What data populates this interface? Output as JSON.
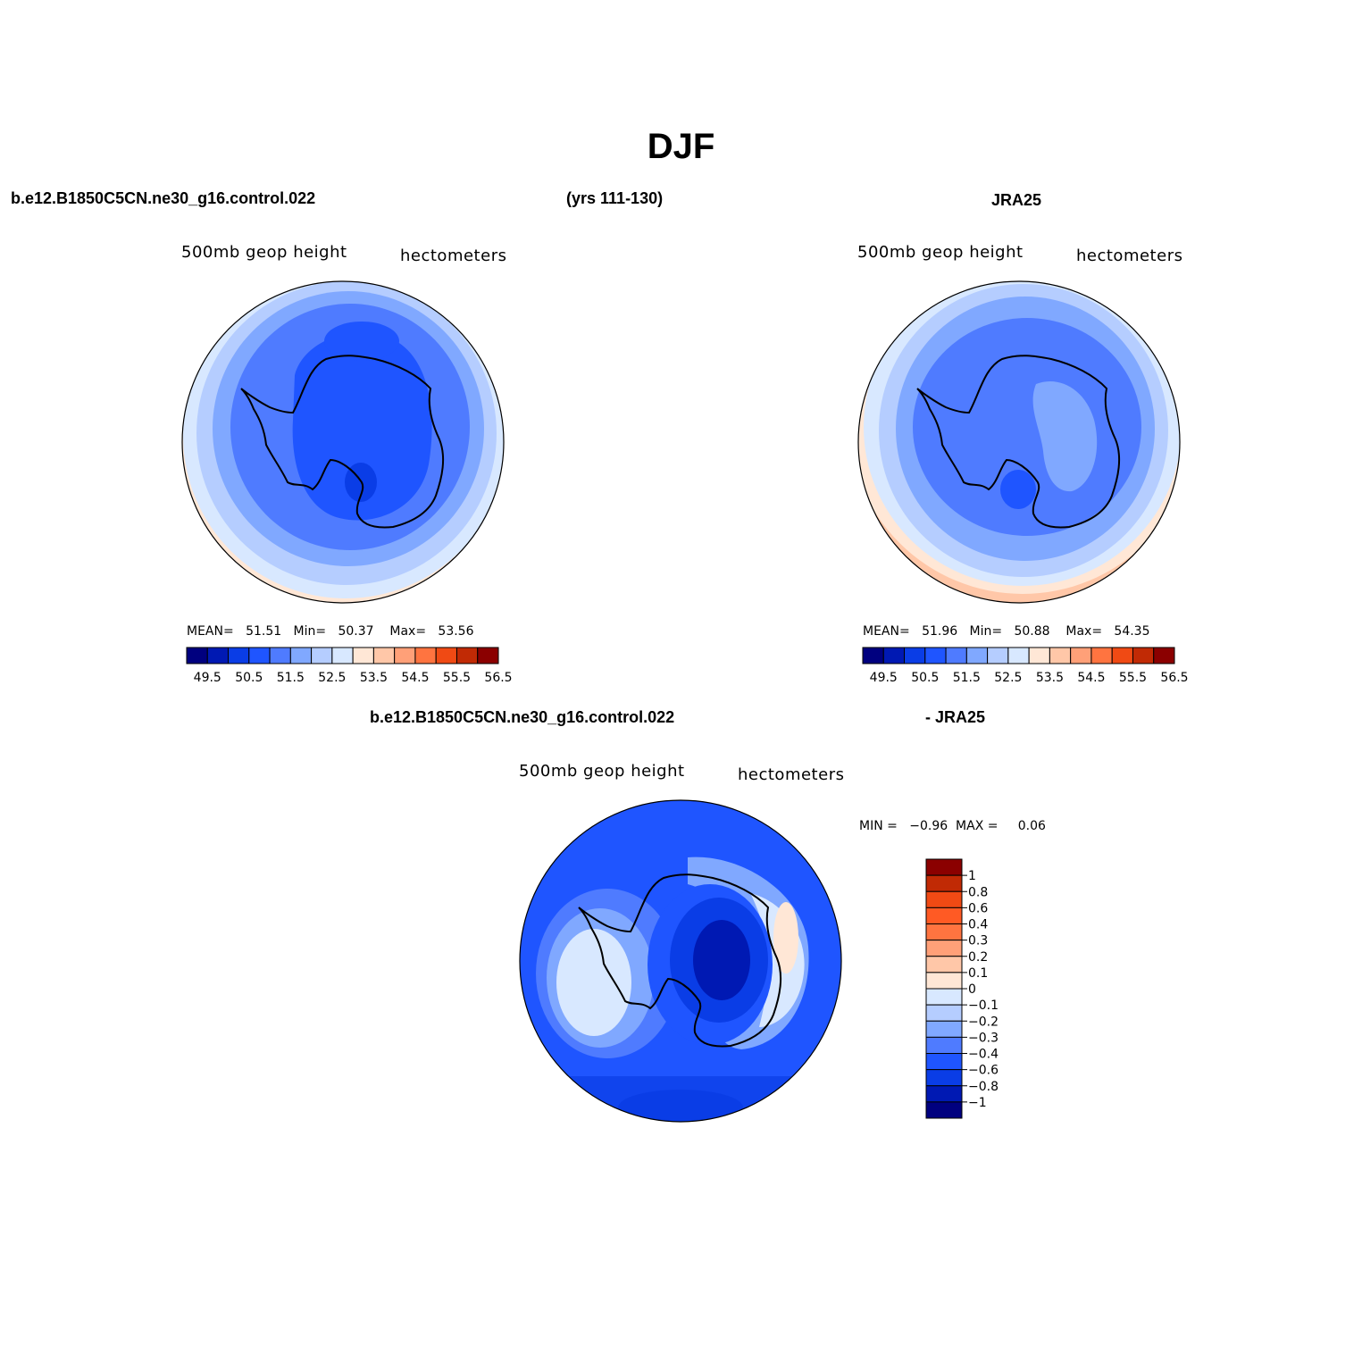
{
  "figure": {
    "title": "DJF"
  },
  "headers": {
    "case_name": "b.e12.B1850C5CN.ne30_g16.control.022",
    "years": "(yrs 111-130)",
    "obs_name": "JRA25",
    "diff_case_name": "b.e12.B1850C5CN.ne30_g16.control.022",
    "diff_obs_name": "- JRA25"
  },
  "panels": [
    {
      "id": "model",
      "left_title": "500mb geop height",
      "right_title": "hectometers",
      "stats": {
        "mean_label": "MEAN=",
        "mean": "51.51",
        "min_label": "Min=",
        "min": "50.37",
        "max_label": "Max=",
        "max": "53.56"
      }
    },
    {
      "id": "obs",
      "left_title": "500mb geop height",
      "right_title": "hectometers",
      "stats": {
        "mean_label": "MEAN=",
        "mean": "51.96",
        "min_label": "Min=",
        "min": "50.88",
        "max_label": "Max=",
        "max": "54.35"
      }
    },
    {
      "id": "diff",
      "left_title": "500mb geop height",
      "right_title": "hectometers",
      "stats": {
        "min_label": "MIN =",
        "min": "−0.96",
        "max_label": "MAX =",
        "max": "0.06"
      }
    }
  ],
  "colorbar_abs": {
    "labels": [
      "49.5",
      "50.5",
      "51.5",
      "52.5",
      "53.5",
      "54.5",
      "55.5",
      "56.5"
    ],
    "colors": [
      "#00007f",
      "#0019b3",
      "#0a3de6",
      "#1f55ff",
      "#4f7bff",
      "#80a8ff",
      "#b5cdff",
      "#d8e8ff",
      "#ffe7d6",
      "#ffc7a8",
      "#ffa078",
      "#ff7440",
      "#f04a14",
      "#c12a05",
      "#8b0000"
    ]
  },
  "colorbar_diff": {
    "labels": [
      "1",
      "0.8",
      "0.6",
      "0.4",
      "0.3",
      "0.2",
      "0.1",
      "0",
      "−0.1",
      "−0.2",
      "−0.3",
      "−0.4",
      "−0.6",
      "−0.8",
      "−1"
    ],
    "colors": [
      "#8b0000",
      "#c12a05",
      "#f04a14",
      "#ff5a24",
      "#ff7440",
      "#ffa078",
      "#ffc7a8",
      "#ffe7d6",
      "#d8e8ff",
      "#b5cdff",
      "#80a8ff",
      "#4f7bff",
      "#1f55ff",
      "#0a3de6",
      "#0019b3",
      "#00007f"
    ]
  }
}
